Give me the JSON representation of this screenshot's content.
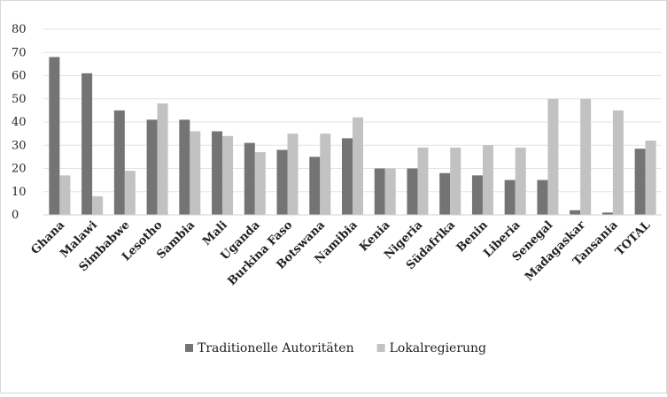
{
  "chart_data": {
    "type": "bar",
    "title": "",
    "xlabel": "",
    "ylabel": "",
    "ylim": [
      0,
      80
    ],
    "yticks": [
      0,
      10,
      20,
      30,
      40,
      50,
      60,
      70,
      80
    ],
    "grid": true,
    "legend_position": "bottom",
    "categories": [
      "Ghana",
      "Malawi",
      "Simbabwe",
      "Lesotho",
      "Sambia",
      "Mali",
      "Uganda",
      "Burkina Faso",
      "Botswana",
      "Namibia",
      "Kenia",
      "Nigeria",
      "Südafrika",
      "Benin",
      "Liberia",
      "Senegal",
      "Madagaskar",
      "Tansania",
      "TOTAL"
    ],
    "series": [
      {
        "name": "Traditionelle Autoritäten",
        "color": "#747474",
        "values": [
          68,
          61,
          45,
          41,
          41,
          36,
          31,
          28,
          25,
          33,
          20,
          20,
          18,
          17,
          15,
          15,
          2,
          1,
          28.5
        ]
      },
      {
        "name": "Lokalregierung",
        "color": "#c2c2c2",
        "values": [
          17,
          8,
          19,
          48,
          36,
          34,
          27,
          35,
          35,
          42,
          20,
          29,
          29,
          30,
          29,
          50,
          50,
          45,
          32
        ]
      }
    ]
  }
}
